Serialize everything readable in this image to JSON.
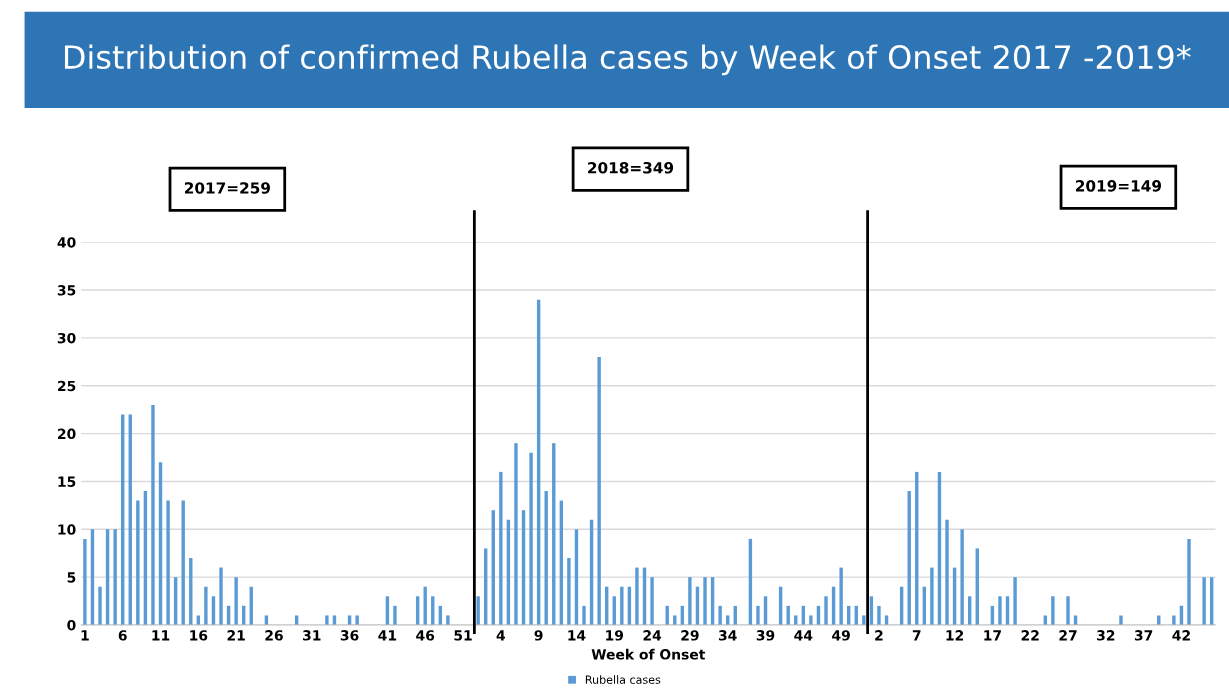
{
  "chart_data": {
    "type": "bar",
    "title": "Distribution of confirmed Rubella cases by Week of Onset 2017 -2019*",
    "xlabel": "Week of Onset",
    "annotations": [
      "2017=259",
      "2018=349",
      "2019=149"
    ],
    "categories": [
      "1",
      null,
      null,
      null,
      null,
      "6",
      null,
      null,
      null,
      null,
      "11",
      null,
      null,
      null,
      null,
      "16",
      null,
      null,
      null,
      null,
      "21",
      null,
      null,
      null,
      null,
      "26",
      null,
      null,
      null,
      null,
      "31",
      null,
      null,
      null,
      null,
      "36",
      null,
      null,
      null,
      null,
      "41",
      null,
      null,
      null,
      null,
      "46",
      null,
      null,
      null,
      null,
      "51",
      null,
      null,
      null,
      null,
      "4",
      null,
      null,
      null,
      null,
      "9",
      null,
      null,
      null,
      null,
      "14",
      null,
      null,
      null,
      null,
      "19",
      null,
      null,
      null,
      null,
      "24",
      null,
      null,
      null,
      null,
      "29",
      null,
      null,
      null,
      null,
      "34",
      null,
      null,
      null,
      null,
      "39",
      null,
      null,
      null,
      null,
      "44",
      null,
      null,
      null,
      null,
      "49",
      null,
      null,
      null,
      null,
      "2",
      null,
      null,
      null,
      null,
      "7",
      null,
      null,
      null,
      null,
      "12",
      null,
      null,
      null,
      null,
      "17",
      null,
      null,
      null,
      null,
      "22",
      null,
      null,
      null,
      null,
      "27",
      null,
      null,
      null,
      null,
      "32",
      null,
      null,
      null,
      null,
      "37",
      null,
      null,
      null,
      null,
      "42",
      null,
      null,
      null,
      null
    ],
    "series": [
      {
        "name": "Rubella cases",
        "color": "#5b9bd5",
        "values": [
          9,
          10,
          4,
          10,
          10,
          22,
          22,
          13,
          14,
          23,
          17,
          13,
          5,
          13,
          7,
          1,
          4,
          3,
          6,
          2,
          5,
          2,
          4,
          0,
          1,
          0,
          0,
          0,
          1,
          0,
          0,
          0,
          1,
          1,
          0,
          1,
          1,
          0,
          0,
          0,
          3,
          2,
          0,
          0,
          3,
          4,
          3,
          2,
          1,
          0,
          0,
          0,
          3,
          8,
          12,
          16,
          11,
          19,
          12,
          18,
          34,
          14,
          19,
          13,
          7,
          10,
          2,
          11,
          28,
          4,
          3,
          4,
          4,
          6,
          6,
          5,
          0,
          2,
          1,
          2,
          5,
          4,
          5,
          5,
          2,
          1,
          2,
          0,
          9,
          2,
          3,
          0,
          4,
          2,
          1,
          2,
          1,
          2,
          3,
          4,
          6,
          2,
          2,
          1,
          3,
          2,
          1,
          0,
          4,
          14,
          16,
          4,
          6,
          16,
          11,
          6,
          10,
          3,
          8,
          0,
          2,
          3,
          3,
          5,
          0,
          0,
          0,
          1,
          3,
          0,
          3,
          1,
          0,
          0,
          0,
          0,
          0,
          1,
          0,
          0,
          0,
          0,
          1,
          0,
          1,
          2,
          9,
          0,
          5,
          5
        ]
      }
    ],
    "ylim": [
      0,
      40
    ],
    "yticks": [
      0,
      5,
      10,
      15,
      20,
      25,
      30,
      35,
      40
    ],
    "grid": "y",
    "legend": "bottom"
  }
}
